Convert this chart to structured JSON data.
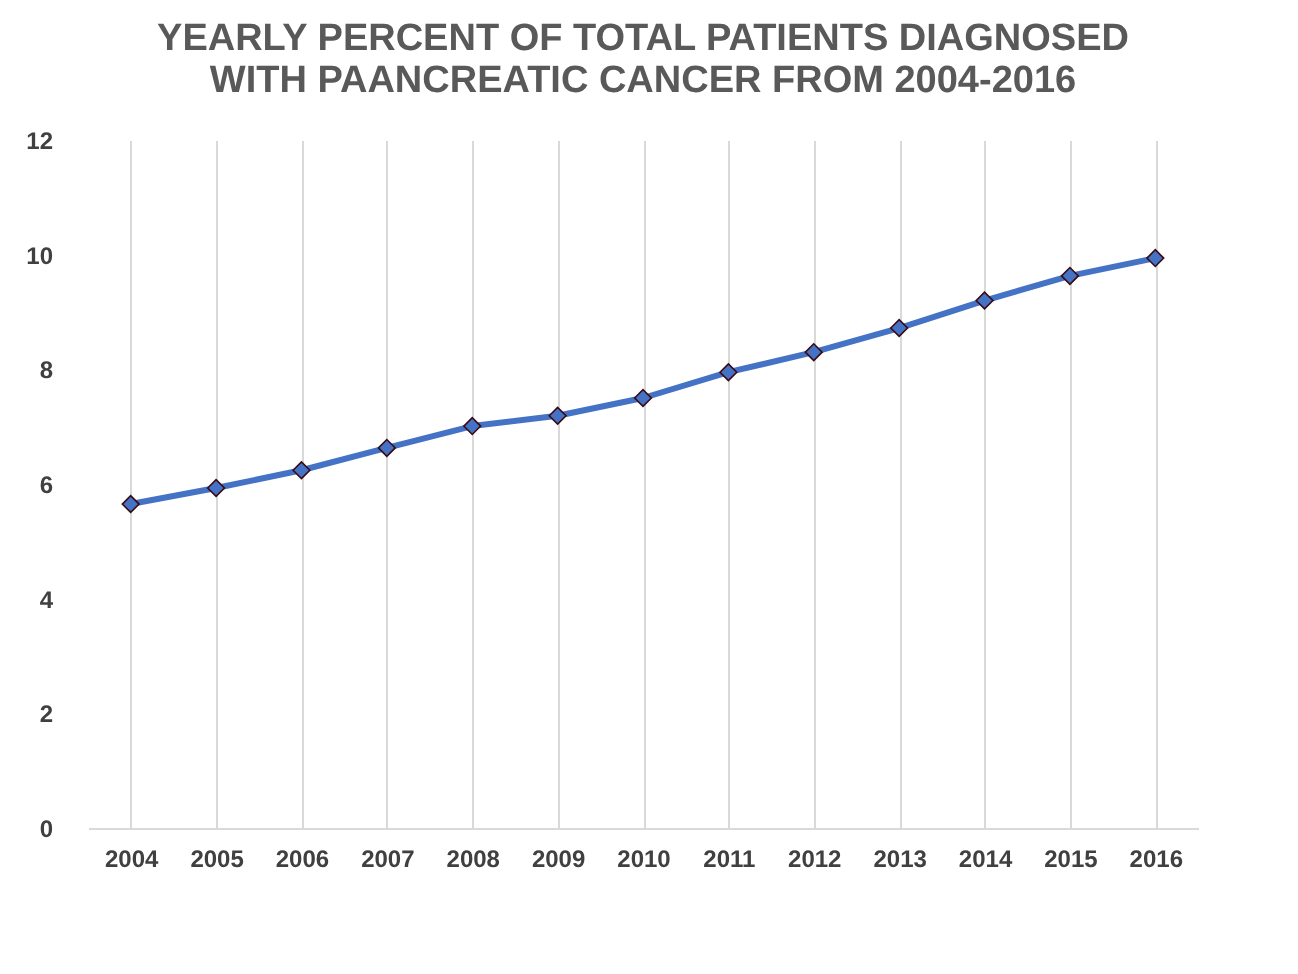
{
  "chart_data": {
    "type": "line",
    "title": "YEARLY PERCENT OF TOTAL PATIENTS DIAGNOSED\nWITH PAANCREATIC CANCER FROM 2004-2016",
    "categories": [
      "2004",
      "2005",
      "2006",
      "2007",
      "2008",
      "2009",
      "2010",
      "2011",
      "2012",
      "2013",
      "2014",
      "2015",
      "2016"
    ],
    "series": [
      {
        "color": "#4472c4",
        "values": [
          5.65,
          5.93,
          6.24,
          6.63,
          7.01,
          7.19,
          7.5,
          7.95,
          8.3,
          8.72,
          9.2,
          9.63,
          9.94
        ]
      }
    ],
    "ylim": [
      0,
      12
    ],
    "yticks": [
      0,
      2,
      4,
      6,
      8,
      10,
      12
    ],
    "grid": "x",
    "marker": "diamond",
    "legend": false
  }
}
